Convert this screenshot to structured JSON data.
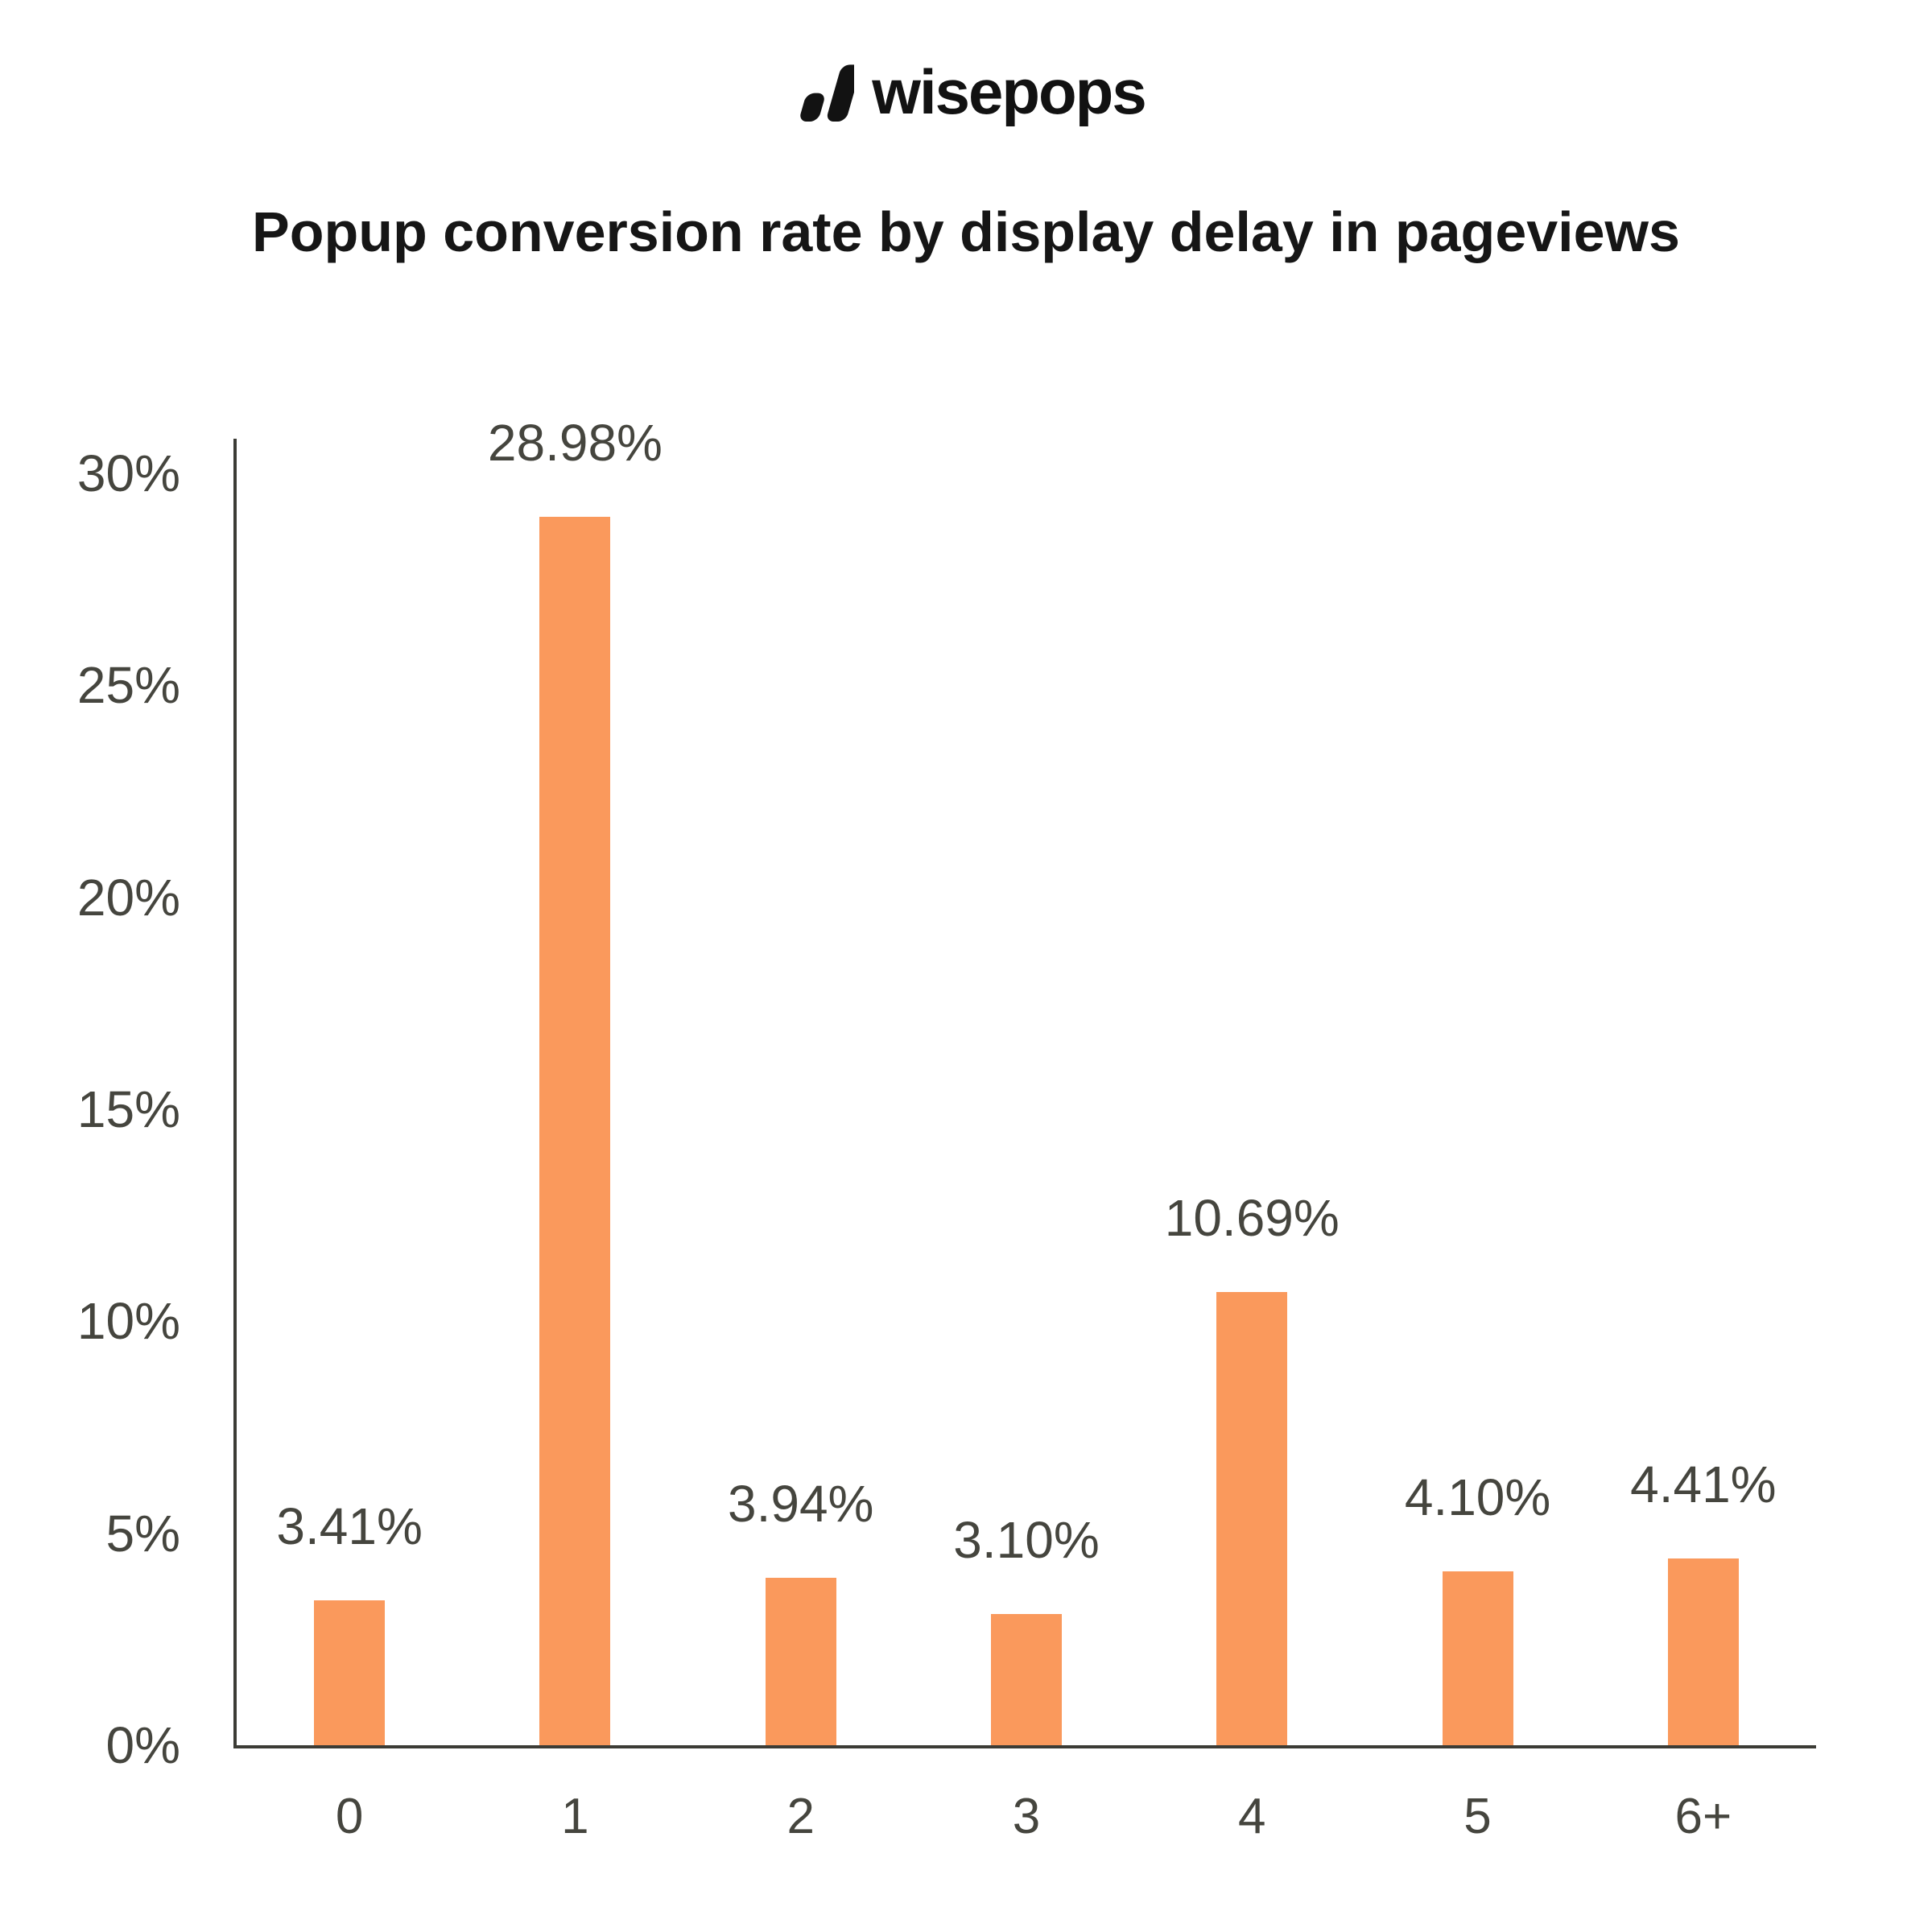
{
  "logo": {
    "text": "wisepops",
    "icon": "wisepops-bars-icon",
    "color": "#121212"
  },
  "title": "Popup conversion rate by display delay in pageviews",
  "colors": {
    "bar": "#FA995C",
    "label_text": "#45453E",
    "axis_line": "#3C3C36",
    "title_text": "#161616",
    "background": "#FFFFFF"
  },
  "chart_data": {
    "type": "bar",
    "title": "Popup conversion rate by display delay in pageviews",
    "categories": [
      "0",
      "1",
      "2",
      "3",
      "4",
      "5",
      "6+"
    ],
    "values": [
      3.41,
      28.98,
      3.94,
      3.1,
      10.69,
      4.1,
      4.41
    ],
    "value_labels": [
      "3.41%",
      "28.98%",
      "3.94%",
      "3.10%",
      "10.69%",
      "4.10%",
      "4.41%"
    ],
    "series_name": "Popup conversion rate",
    "xlabel": "",
    "ylabel": "",
    "y_tick_values": [
      0,
      5,
      10,
      15,
      20,
      25,
      30
    ],
    "y_tick_labels": [
      "0%",
      "5%",
      "10%",
      "15%",
      "20%",
      "25%",
      "30%"
    ],
    "ylim": [
      0,
      30
    ],
    "grid": false,
    "legend_position": "none",
    "bar_color": "#FA995C"
  }
}
